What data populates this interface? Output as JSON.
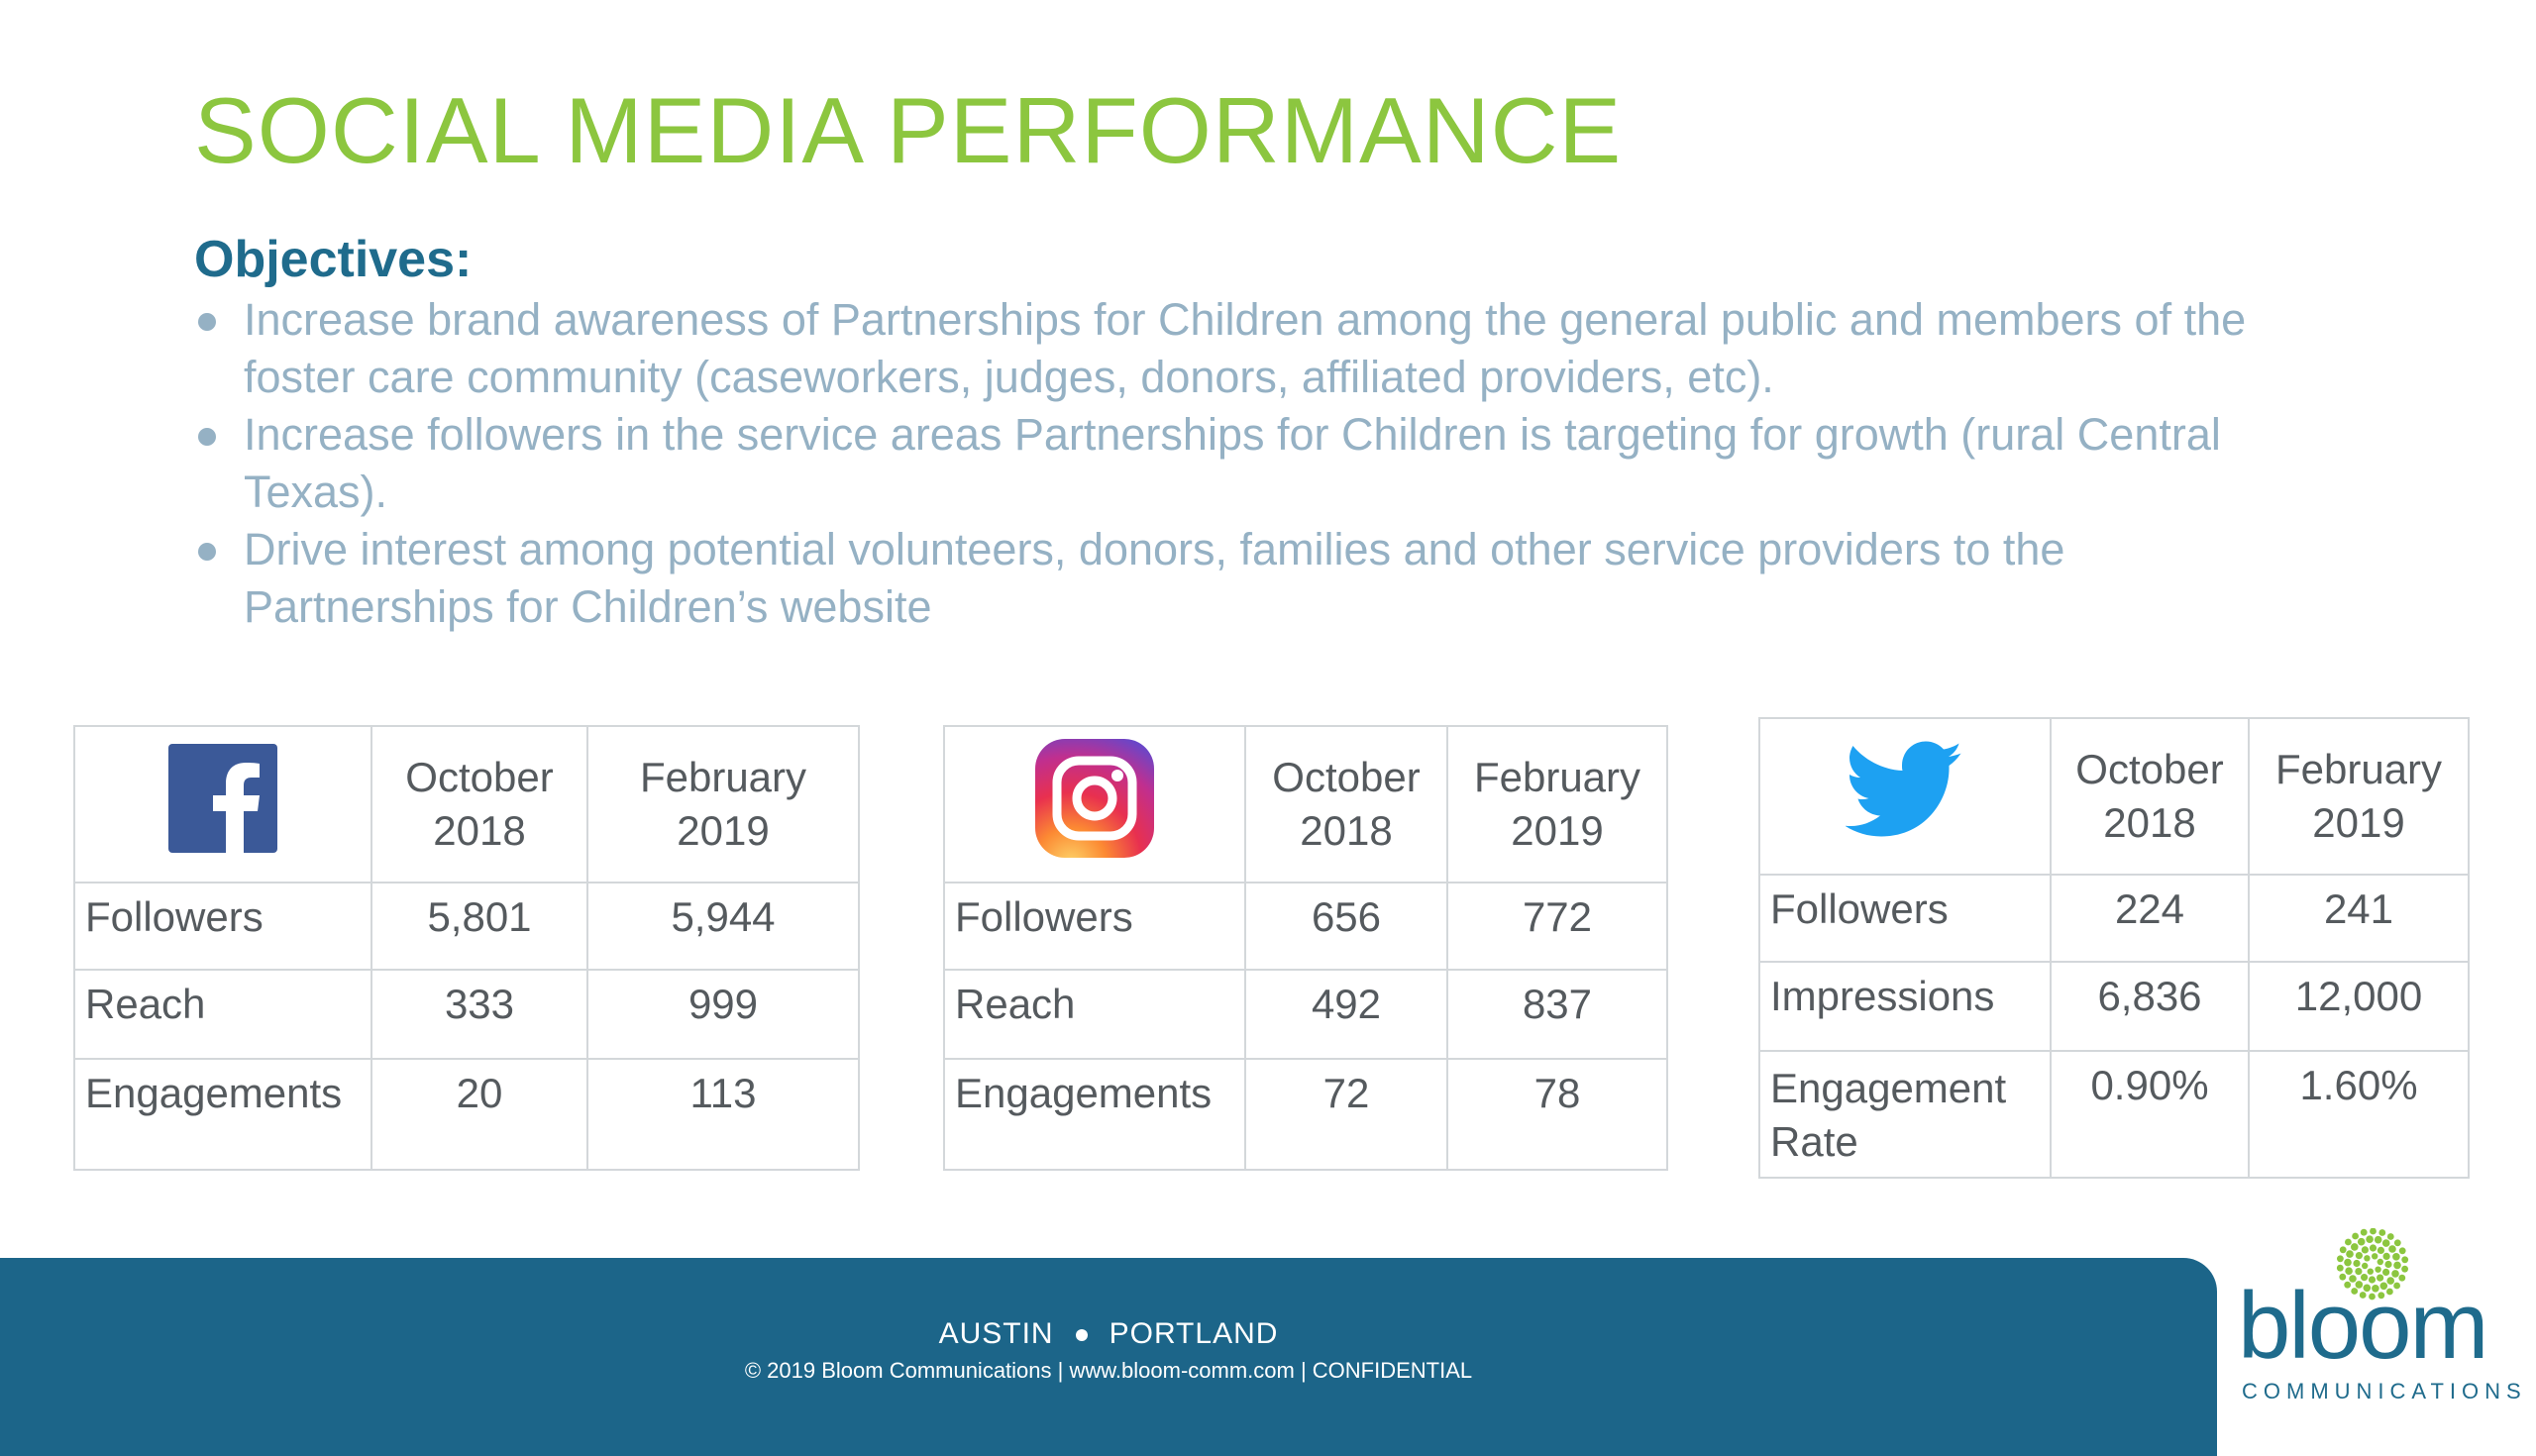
{
  "slide": {
    "title": "SOCIAL MEDIA PERFORMANCE",
    "objectives_heading": "Objectives:",
    "objectives": [
      "Increase brand awareness of Partnerships for Children among the general public and  members of the foster care community  (caseworkers, judges, donors, affiliated providers, etc).",
      "Increase followers in the service areas Partnerships for Children is targeting for growth (rural Central Texas).",
      "Drive interest among potential volunteers, donors, families and other service providers to the Partnerships for Children’s website"
    ]
  },
  "tables": {
    "facebook": {
      "icon": "facebook-icon",
      "col1": "October 2018",
      "col2": "February 2019",
      "rows": [
        {
          "label": "Followers",
          "v1": "5,801",
          "v2": "5,944"
        },
        {
          "label": "Reach",
          "v1": "333",
          "v2": "999"
        },
        {
          "label": "Engagements",
          "v1": "20",
          "v2": "113"
        }
      ]
    },
    "instagram": {
      "icon": "instagram-icon",
      "col1": "October 2018",
      "col2": "February 2019",
      "rows": [
        {
          "label": "Followers",
          "v1": "656",
          "v2": "772"
        },
        {
          "label": "Reach",
          "v1": "492",
          "v2": "837"
        },
        {
          "label": "Engagements",
          "v1": "72",
          "v2": "78"
        }
      ]
    },
    "twitter": {
      "icon": "twitter-icon",
      "col1": "October 2018",
      "col2": "February 2019",
      "rows": [
        {
          "label": "Followers",
          "v1": "224",
          "v2": "241"
        },
        {
          "label": "Impressions",
          "v1": "6,836",
          "v2": "12,000"
        },
        {
          "label": "Engagement Rate",
          "v1": "0.90%",
          "v2": "1.60%"
        }
      ]
    }
  },
  "footer": {
    "city1": "AUSTIN",
    "city2": "PORTLAND",
    "legal": "© 2019 Bloom Communications  |  www.bloom-comm.com  |  CONFIDENTIAL"
  },
  "logo": {
    "word": "bloom",
    "sub": "COMMUNICATIONS"
  },
  "colors": {
    "title_green": "#8cc63f",
    "heading_blue": "#1f6b8c",
    "bullet_text": "#95b1c4",
    "footer_bar": "#1c6589",
    "facebook_blue": "#3b5998",
    "twitter_blue": "#1da1f2"
  }
}
